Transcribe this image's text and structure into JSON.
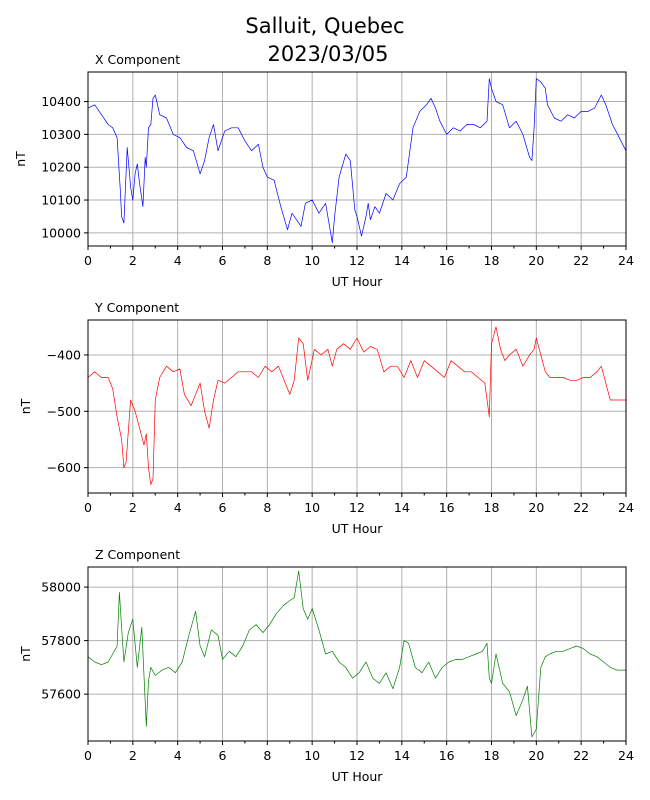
{
  "figure": {
    "title_line1": "Salluit, Quebec",
    "title_line2": "2023/03/05"
  },
  "chart_data": [
    {
      "type": "line",
      "title": "X Component",
      "xlabel": "UT Hour",
      "ylabel": "nT",
      "color": "#0000ff",
      "xlim": [
        0,
        24
      ],
      "ylim": [
        9960,
        10490
      ],
      "xticks": [
        0,
        2,
        4,
        6,
        8,
        10,
        12,
        14,
        16,
        18,
        20,
        22,
        24
      ],
      "yticks": [
        10000,
        10100,
        10200,
        10300,
        10400
      ],
      "grid": true,
      "x": [
        0,
        0.3,
        0.6,
        0.9,
        1.1,
        1.3,
        1.45,
        1.5,
        1.6,
        1.75,
        1.85,
        1.9,
        2.0,
        2.1,
        2.2,
        2.3,
        2.45,
        2.55,
        2.6,
        2.7,
        2.8,
        2.9,
        3.0,
        3.2,
        3.5,
        3.8,
        4.1,
        4.4,
        4.7,
        5.0,
        5.2,
        5.4,
        5.6,
        5.8,
        6.1,
        6.4,
        6.7,
        7.0,
        7.3,
        7.6,
        7.8,
        8.0,
        8.3,
        8.6,
        8.9,
        9.1,
        9.3,
        9.5,
        9.7,
        10.0,
        10.3,
        10.6,
        10.9,
        11.0,
        11.2,
        11.5,
        11.7,
        11.9,
        12.0,
        12.2,
        12.4,
        12.5,
        12.6,
        12.8,
        13.0,
        13.3,
        13.6,
        13.9,
        14.2,
        14.5,
        14.8,
        15.1,
        15.3,
        15.5,
        15.7,
        16.0,
        16.3,
        16.6,
        16.9,
        17.2,
        17.5,
        17.8,
        17.9,
        18.0,
        18.2,
        18.5,
        18.8,
        19.1,
        19.4,
        19.7,
        19.8,
        19.9,
        20.0,
        20.2,
        20.4,
        20.5,
        20.8,
        21.1,
        21.4,
        21.7,
        22.0,
        22.3,
        22.6,
        22.9,
        23.1,
        23.4,
        23.7,
        24.0
      ],
      "y": [
        10380,
        10390,
        10360,
        10330,
        10320,
        10290,
        10120,
        10050,
        10030,
        10260,
        10180,
        10140,
        10100,
        10180,
        10210,
        10150,
        10080,
        10230,
        10200,
        10320,
        10330,
        10410,
        10420,
        10360,
        10350,
        10300,
        10290,
        10260,
        10250,
        10180,
        10220,
        10290,
        10330,
        10250,
        10310,
        10320,
        10320,
        10280,
        10250,
        10270,
        10200,
        10170,
        10160,
        10080,
        10010,
        10060,
        10040,
        10020,
        10090,
        10100,
        10060,
        10090,
        9970,
        10050,
        10170,
        10240,
        10220,
        10070,
        10050,
        9990,
        10050,
        10090,
        10040,
        10080,
        10060,
        10120,
        10100,
        10150,
        10170,
        10320,
        10370,
        10390,
        10410,
        10380,
        10340,
        10300,
        10320,
        10310,
        10330,
        10330,
        10320,
        10340,
        10470,
        10440,
        10400,
        10390,
        10320,
        10340,
        10300,
        10230,
        10220,
        10320,
        10470,
        10460,
        10440,
        10390,
        10350,
        10340,
        10360,
        10350,
        10370,
        10370,
        10380,
        10420,
        10390,
        10330,
        10290,
        10250
      ]
    },
    {
      "type": "line",
      "title": "Y Component",
      "xlabel": "UT Hour",
      "ylabel": "nT",
      "color": "#ff0000",
      "xlim": [
        0,
        24
      ],
      "ylim": [
        -645,
        -338
      ],
      "xticks": [
        0,
        2,
        4,
        6,
        8,
        10,
        12,
        14,
        16,
        18,
        20,
        22,
        24
      ],
      "yticks": [
        -400,
        -500,
        -600
      ],
      "grid": true,
      "x": [
        0,
        0.3,
        0.6,
        0.9,
        1.1,
        1.3,
        1.5,
        1.6,
        1.7,
        1.9,
        2.1,
        2.3,
        2.5,
        2.6,
        2.7,
        2.8,
        2.9,
        3.0,
        3.2,
        3.5,
        3.8,
        4.1,
        4.3,
        4.6,
        4.8,
        5.0,
        5.2,
        5.4,
        5.6,
        5.8,
        6.1,
        6.4,
        6.7,
        7.0,
        7.3,
        7.6,
        7.9,
        8.2,
        8.5,
        8.8,
        9.0,
        9.2,
        9.4,
        9.6,
        9.8,
        10.1,
        10.4,
        10.7,
        10.9,
        11.1,
        11.4,
        11.7,
        12.0,
        12.3,
        12.6,
        12.9,
        13.2,
        13.5,
        13.8,
        14.1,
        14.4,
        14.7,
        15.0,
        15.3,
        15.6,
        15.9,
        16.2,
        16.5,
        16.8,
        17.1,
        17.4,
        17.7,
        17.9,
        18.0,
        18.2,
        18.4,
        18.6,
        18.8,
        19.1,
        19.4,
        19.7,
        19.9,
        20.0,
        20.2,
        20.4,
        20.6,
        20.9,
        21.2,
        21.5,
        21.8,
        22.1,
        22.4,
        22.7,
        22.9,
        23.1,
        23.3,
        23.6,
        24.0
      ],
      "y": [
        -440,
        -430,
        -440,
        -440,
        -460,
        -510,
        -550,
        -600,
        -590,
        -480,
        -500,
        -530,
        -560,
        -540,
        -600,
        -630,
        -620,
        -480,
        -440,
        -420,
        -430,
        -425,
        -470,
        -490,
        -470,
        -450,
        -500,
        -530,
        -480,
        -445,
        -450,
        -440,
        -430,
        -430,
        -430,
        -440,
        -420,
        -430,
        -420,
        -450,
        -470,
        -445,
        -370,
        -380,
        -445,
        -390,
        -400,
        -390,
        -420,
        -390,
        -380,
        -390,
        -370,
        -395,
        -385,
        -390,
        -430,
        -420,
        -420,
        -440,
        -410,
        -440,
        -410,
        -420,
        -430,
        -440,
        -410,
        -420,
        -430,
        -430,
        -440,
        -450,
        -510,
        -380,
        -350,
        -390,
        -410,
        -400,
        -390,
        -420,
        -400,
        -390,
        -370,
        -400,
        -430,
        -440,
        -440,
        -440,
        -445,
        -445,
        -440,
        -440,
        -430,
        -420,
        -450,
        -480,
        -480,
        -480
      ]
    },
    {
      "type": "line",
      "title": "Z Component",
      "xlabel": "UT Hour",
      "ylabel": "nT",
      "color": "#008000",
      "xlim": [
        0,
        24
      ],
      "ylim": [
        57425,
        58075
      ],
      "xticks": [
        0,
        2,
        4,
        6,
        8,
        10,
        12,
        14,
        16,
        18,
        20,
        22,
        24
      ],
      "yticks": [
        57600,
        57800,
        58000
      ],
      "grid": true,
      "x": [
        0,
        0.3,
        0.6,
        0.9,
        1.1,
        1.3,
        1.4,
        1.5,
        1.6,
        1.8,
        2.0,
        2.2,
        2.4,
        2.6,
        2.7,
        2.8,
        3.0,
        3.3,
        3.6,
        3.9,
        4.2,
        4.5,
        4.8,
        5.0,
        5.2,
        5.5,
        5.8,
        6.0,
        6.3,
        6.6,
        6.9,
        7.2,
        7.5,
        7.8,
        8.1,
        8.4,
        8.7,
        9.0,
        9.2,
        9.4,
        9.6,
        9.8,
        10.0,
        10.3,
        10.6,
        10.9,
        11.2,
        11.5,
        11.8,
        12.1,
        12.4,
        12.7,
        13.0,
        13.3,
        13.6,
        13.9,
        14.1,
        14.3,
        14.6,
        14.9,
        15.2,
        15.5,
        15.8,
        16.1,
        16.4,
        16.7,
        17.0,
        17.3,
        17.6,
        17.8,
        17.9,
        18.0,
        18.2,
        18.5,
        18.8,
        19.1,
        19.4,
        19.6,
        19.8,
        20.0,
        20.2,
        20.4,
        20.6,
        20.9,
        21.2,
        21.5,
        21.8,
        22.1,
        22.4,
        22.7,
        23.0,
        23.3,
        23.6,
        24.0
      ],
      "y": [
        57740,
        57720,
        57710,
        57720,
        57750,
        57780,
        57980,
        57850,
        57720,
        57830,
        57880,
        57700,
        57850,
        57480,
        57650,
        57700,
        57670,
        57690,
        57700,
        57680,
        57720,
        57820,
        57910,
        57780,
        57740,
        57840,
        57820,
        57730,
        57760,
        57740,
        57780,
        57840,
        57860,
        57830,
        57860,
        57900,
        57930,
        57950,
        57960,
        58060,
        57920,
        57880,
        57920,
        57840,
        57750,
        57760,
        57720,
        57700,
        57660,
        57680,
        57720,
        57660,
        57640,
        57680,
        57620,
        57700,
        57800,
        57790,
        57700,
        57680,
        57720,
        57660,
        57700,
        57720,
        57730,
        57730,
        57740,
        57750,
        57760,
        57790,
        57660,
        57640,
        57750,
        57640,
        57610,
        57520,
        57580,
        57630,
        57440,
        57470,
        57700,
        57740,
        57750,
        57760,
        57760,
        57770,
        57780,
        57770,
        57750,
        57740,
        57720,
        57700,
        57690,
        57690
      ]
    }
  ]
}
